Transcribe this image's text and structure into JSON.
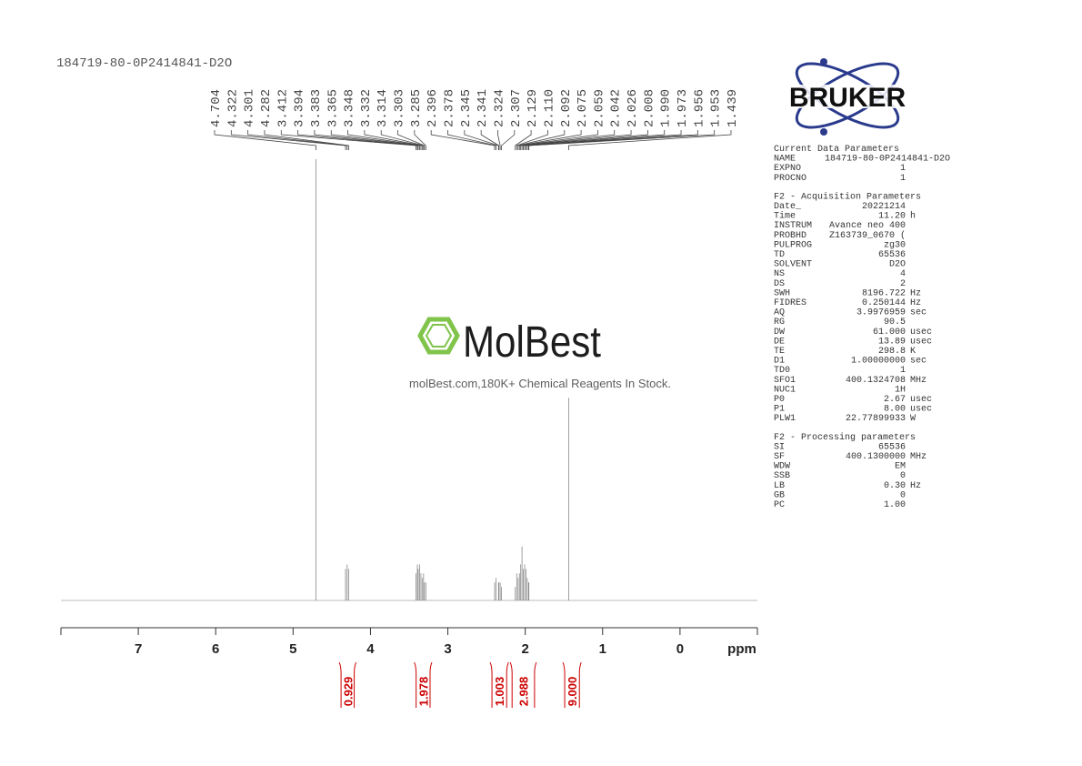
{
  "chart_data": {
    "type": "nmr",
    "title": "184719-80-0P2414841-D2O",
    "x_label": "ppm",
    "xlim": [
      8,
      -1
    ],
    "xticks": [
      7,
      6,
      5,
      4,
      3,
      2,
      1,
      0
    ],
    "ylim": [
      0,
      100
    ],
    "peaks": {
      "ppm": [
        4.704,
        4.322,
        4.301,
        4.282,
        3.412,
        3.394,
        3.383,
        3.365,
        3.348,
        3.332,
        3.314,
        3.303,
        3.285,
        2.396,
        2.378,
        2.345,
        2.341,
        2.324,
        2.307,
        2.129,
        2.11,
        2.092,
        2.075,
        2.059,
        2.042,
        2.026,
        2.008,
        1.99,
        1.973,
        1.956,
        1.953,
        1.439
      ],
      "labels": [
        "4.704",
        "4.322",
        "4.301",
        "4.282",
        "3.412",
        "3.394",
        "3.383",
        "3.365",
        "3.348",
        "3.332",
        "3.314",
        "3.303",
        "3.285",
        "2.396",
        "2.378",
        "2.345",
        "2.341",
        "2.324",
        "2.307",
        "2.129",
        "2.110",
        "2.092",
        "2.075",
        "2.059",
        "2.042",
        "2.026",
        "2.008",
        "1.990",
        "1.973",
        "1.956",
        "1.953",
        "1.439"
      ],
      "heights": [
        98,
        7,
        8,
        7,
        6,
        8,
        7,
        8,
        6,
        5,
        6,
        4,
        4,
        4,
        5,
        4,
        4,
        4,
        3,
        3,
        6,
        5,
        6,
        8,
        12,
        7,
        8,
        7,
        5,
        4,
        4,
        45
      ],
      "color": "#888888"
    },
    "integrals": {
      "values": [
        0.929,
        1.978,
        1.003,
        2.988,
        9
      ],
      "value_labels": [
        "0.929",
        "1.978",
        "1.003",
        "2.988",
        "9.000"
      ],
      "ranges": [
        [
          4.38,
          4.21
        ],
        [
          3.41,
          3.23
        ],
        [
          2.43,
          2.24
        ],
        [
          2.17,
          1.88
        ],
        [
          1.49,
          1.3
        ]
      ],
      "color": "#cc0000"
    }
  },
  "logo": {
    "text": "BRUKER"
  },
  "watermark": {
    "name": "MolBest",
    "tagline": "molBest.com,180K+ Chemical Reagents In Stock."
  },
  "parameters": [
    {
      "title": "Current Data Parameters",
      "rows": [
        [
          "NAME",
          "184719-80-0P2414841-D2O"
        ],
        [
          "EXPNO",
          "1"
        ],
        [
          "PROCNO",
          "1"
        ]
      ]
    },
    {
      "title": "F2 - Acquisition Parameters",
      "rows": [
        [
          "Date_",
          "20221214"
        ],
        [
          "Time",
          "11.20",
          "h"
        ],
        [
          "INSTRUM",
          "Avance neo 400"
        ],
        [
          "PROBHD",
          "Z163739_0670 ("
        ],
        [
          "PULPROG",
          "zg30"
        ],
        [
          "TD",
          "65536"
        ],
        [
          "SOLVENT",
          "D2O"
        ],
        [
          "NS",
          "4"
        ],
        [
          "DS",
          "2"
        ],
        [
          "SWH",
          "8196.722",
          "Hz"
        ],
        [
          "FIDRES",
          "0.250144",
          "Hz"
        ],
        [
          "AQ",
          "3.9976959",
          "sec"
        ],
        [
          "RG",
          "90.5"
        ],
        [
          "DW",
          "61.000",
          "usec"
        ],
        [
          "DE",
          "13.89",
          "usec"
        ],
        [
          "TE",
          "298.8",
          "K"
        ],
        [
          "D1",
          "1.00000000",
          "sec"
        ],
        [
          "TD0",
          "1"
        ],
        [
          "SFO1",
          "400.1324708",
          "MHz"
        ],
        [
          "NUC1",
          "1H"
        ],
        [
          "P0",
          "2.67",
          "usec"
        ],
        [
          "P1",
          "8.00",
          "usec"
        ],
        [
          "PLW1",
          "22.77899933",
          "W"
        ]
      ]
    },
    {
      "title": "F2 - Processing parameters",
      "rows": [
        [
          "SI",
          "65536"
        ],
        [
          "SF",
          "400.1300000",
          "MHz"
        ],
        [
          "WDW",
          "EM"
        ],
        [
          "SSB",
          "0"
        ],
        [
          "LB",
          "0.30",
          "Hz"
        ],
        [
          "GB",
          "0"
        ],
        [
          "PC",
          "1.00"
        ]
      ]
    }
  ]
}
